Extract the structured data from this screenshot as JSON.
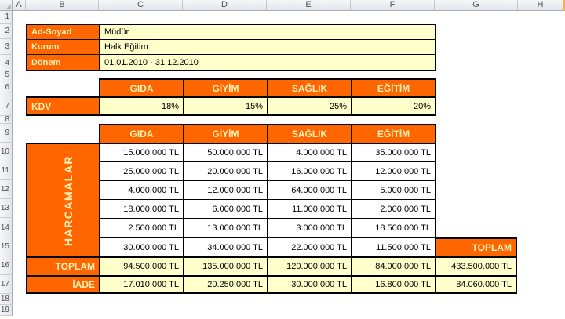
{
  "sheet": {
    "columns": [
      "A",
      "B",
      "C",
      "D",
      "E",
      "F",
      "G",
      "H"
    ],
    "rows": [
      "1",
      "2",
      "3",
      "4",
      "5",
      "6",
      "7",
      "8",
      "9",
      "10",
      "11",
      "12",
      "13",
      "14",
      "15",
      "16",
      "17",
      "18",
      "19"
    ]
  },
  "colors": {
    "accent_orange": "#FF6600",
    "cell_cream": "#FFFFCC",
    "label_text": "#FFF1B3",
    "table_border": "#000000"
  },
  "info": {
    "rows": [
      {
        "label": "Ad-Soyad",
        "value": "Müdür"
      },
      {
        "label": "Kurum",
        "value": "Halk Eğitim"
      },
      {
        "label": "Dönem",
        "value": "01.01.2010 - 31.12.2010"
      }
    ]
  },
  "kdv": {
    "label": "KDV",
    "categories": [
      "GIDA",
      "GİYİM",
      "SAĞLIK",
      "EĞİTİM"
    ],
    "rates": [
      "18%",
      "15%",
      "25%",
      "20%"
    ]
  },
  "expenses": {
    "title": "HARCAMALAR",
    "categories": [
      "GIDA",
      "GİYİM",
      "SAĞLIK",
      "EĞİTİM"
    ],
    "rows": [
      [
        "15.000.000 TL",
        "50.000.000 TL",
        "4.000.000 TL",
        "35.000.000 TL"
      ],
      [
        "25.000.000 TL",
        "20.000.000 TL",
        "16.000.000 TL",
        "12.000.000 TL"
      ],
      [
        "4.000.000 TL",
        "12.000.000 TL",
        "64.000.000 TL",
        "5.000.000 TL"
      ],
      [
        "18.000.000 TL",
        "6.000.000 TL",
        "11.000.000 TL",
        "2.000.000 TL"
      ],
      [
        "2.500.000 TL",
        "13.000.000 TL",
        "3.000.000 TL",
        "18.500.000 TL"
      ],
      [
        "30.000.000 TL",
        "34.000.000 TL",
        "22.000.000 TL",
        "11.500.000 TL"
      ]
    ],
    "toplam_label": "TOPLAM",
    "toplam": [
      "94.500.000 TL",
      "135.000.000 TL",
      "120.000.000 TL",
      "84.000.000 TL"
    ],
    "iade_label": "İADE",
    "iade": [
      "17.010.000 TL",
      "20.250.000 TL",
      "30.000.000 TL",
      "16.800.000 TL"
    ]
  },
  "grand_total": {
    "header": "TOPLAM",
    "toplam_value": "433.500.000 TL",
    "iade_value": "84.060.000 TL"
  }
}
